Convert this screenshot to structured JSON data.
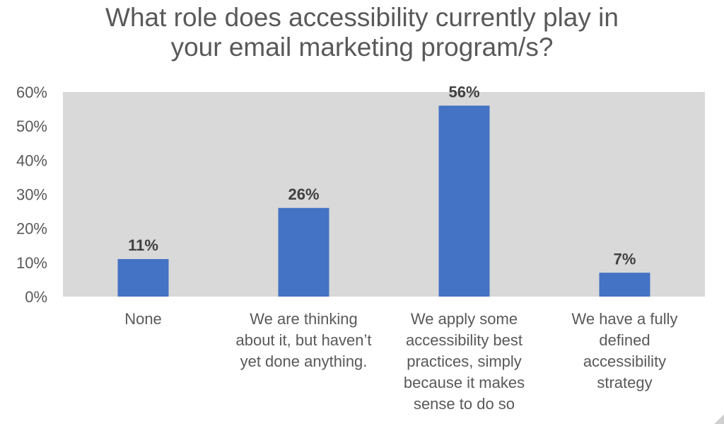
{
  "chart_data": {
    "type": "bar",
    "title_lines": [
      "What role does accessibility currently play in",
      "your email marketing program/s?"
    ],
    "categories": [
      [
        "None"
      ],
      [
        "We are thinking",
        "about it, but haven’t",
        "yet done anything."
      ],
      [
        "We apply some",
        "accessibility best",
        "practices, simply",
        "because it makes",
        "sense to do so"
      ],
      [
        "We have a fully",
        "defined",
        "accessibility",
        "strategy"
      ]
    ],
    "values": [
      11,
      26,
      56,
      7
    ],
    "data_labels": [
      "11%",
      "26%",
      "56%",
      "7%"
    ],
    "y_ticks": [
      "0%",
      "10%",
      "20%",
      "30%",
      "40%",
      "50%",
      "60%"
    ],
    "ylim": [
      0,
      60
    ],
    "grid": false,
    "colors": {
      "bar": "#4472c4",
      "plot_bg": "#d9d9d9",
      "text": "#595959",
      "label": "#404040"
    }
  }
}
